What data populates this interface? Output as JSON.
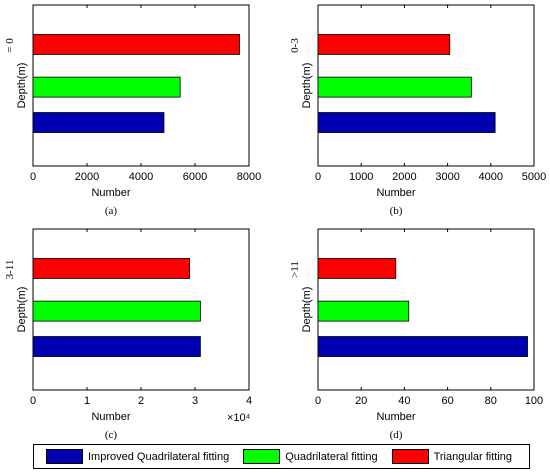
{
  "colors": {
    "improved": "#0000b0",
    "quad": "#00ff00",
    "tri": "#ff0000",
    "axis": "#000000"
  },
  "legend": {
    "items": [
      {
        "label": "Improved Quadrilateral fitting",
        "color": "#0000b0"
      },
      {
        "label": "Quadrilateral fitting",
        "color": "#00ff00"
      },
      {
        "label": "Triangular fitting",
        "color": "#ff0000"
      }
    ],
    "placement": "bottom"
  },
  "chart_data": [
    {
      "type": "bar",
      "orientation": "horizontal",
      "panel_label": "(a)",
      "ylabel": "Depth(m)",
      "category_label": "= 0",
      "xlabel": "Number",
      "xlim": [
        0,
        8000
      ],
      "xticks": [
        "0",
        "2000",
        "4000",
        "6000",
        "8000"
      ],
      "multiplier": "",
      "series": [
        {
          "name": "Improved Quadrilateral fitting",
          "value": 4850
        },
        {
          "name": "Quadrilateral fitting",
          "value": 5450
        },
        {
          "name": "Triangular fitting",
          "value": 7650
        }
      ]
    },
    {
      "type": "bar",
      "orientation": "horizontal",
      "panel_label": "(b)",
      "ylabel": "Depth(m)",
      "category_label": "0-3",
      "xlabel": "Number",
      "xlim": [
        0,
        5000
      ],
      "xticks": [
        "0",
        "1000",
        "2000",
        "3000",
        "4000",
        "5000"
      ],
      "multiplier": "",
      "series": [
        {
          "name": "Improved Quadrilateral fitting",
          "value": 4100
        },
        {
          "name": "Quadrilateral fitting",
          "value": 3550
        },
        {
          "name": "Triangular fitting",
          "value": 3050
        }
      ]
    },
    {
      "type": "bar",
      "orientation": "horizontal",
      "panel_label": "(c)",
      "ylabel": "Depth(m)",
      "category_label": "3-11",
      "xlabel": "Number",
      "xlim": [
        0,
        4
      ],
      "xticks": [
        "0",
        "1",
        "2",
        "3",
        "4"
      ],
      "multiplier": "×10⁴",
      "series": [
        {
          "name": "Improved Quadrilateral fitting",
          "value": 3.1
        },
        {
          "name": "Quadrilateral fitting",
          "value": 3.1
        },
        {
          "name": "Triangular fitting",
          "value": 2.9
        }
      ]
    },
    {
      "type": "bar",
      "orientation": "horizontal",
      "panel_label": "(d)",
      "ylabel": "Depth(m)",
      "category_label": ">11",
      "xlabel": "Number",
      "xlim": [
        0,
        100
      ],
      "xticks": [
        "0",
        "20",
        "40",
        "60",
        "80",
        "100"
      ],
      "multiplier": "",
      "series": [
        {
          "name": "Improved Quadrilateral fitting",
          "value": 97
        },
        {
          "name": "Quadrilateral fitting",
          "value": 42
        },
        {
          "name": "Triangular fitting",
          "value": 36
        }
      ]
    }
  ]
}
